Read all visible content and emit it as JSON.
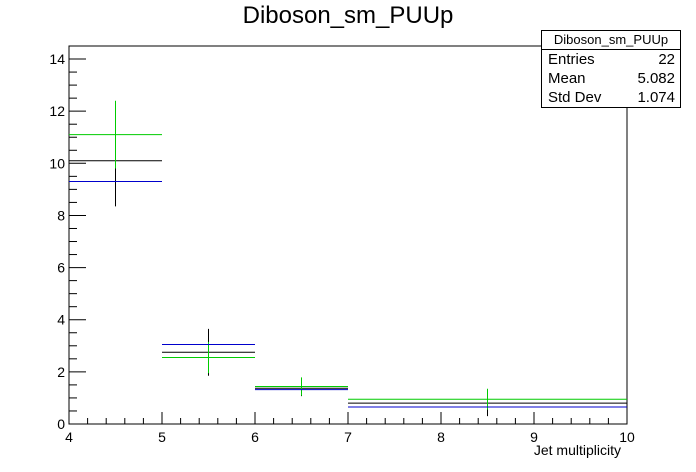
{
  "title": "Diboson_sm_PUUp",
  "stats": {
    "name": "Diboson_sm_PUUp",
    "rows": [
      {
        "label": "Entries",
        "value": "22"
      },
      {
        "label": "Mean",
        "value": "5.082"
      },
      {
        "label": "Std Dev",
        "value": "1.074"
      }
    ]
  },
  "colors": {
    "nominal": "#000000",
    "up": "#00cc00",
    "down": "#0000cc"
  },
  "chart_data": {
    "type": "scatter",
    "title": "Diboson_sm_PUUp",
    "xlabel": "Jet multiplicity",
    "ylabel": "",
    "xlim": [
      4,
      10
    ],
    "ylim": [
      0,
      14.5
    ],
    "xticks": [
      4,
      5,
      6,
      7,
      8,
      9,
      10
    ],
    "yticks": [
      0,
      2,
      4,
      6,
      8,
      10,
      12,
      14
    ],
    "bins": [
      [
        4,
        5
      ],
      [
        5,
        6
      ],
      [
        6,
        7
      ],
      [
        7,
        10
      ]
    ],
    "series": [
      {
        "color": "#000000",
        "values": [
          10.1,
          2.75,
          1.37,
          0.8
        ],
        "errors": [
          1.75,
          0.9,
          0.3,
          0.5
        ]
      },
      {
        "color": "#00cc00",
        "values": [
          11.1,
          2.55,
          1.44,
          0.95
        ],
        "errors": [
          1.3,
          0.6,
          0.35,
          0.4
        ]
      },
      {
        "color": "#0000cc",
        "values": [
          9.3,
          3.05,
          1.32,
          0.65
        ],
        "errors": [
          0,
          0,
          0,
          0
        ]
      }
    ]
  }
}
